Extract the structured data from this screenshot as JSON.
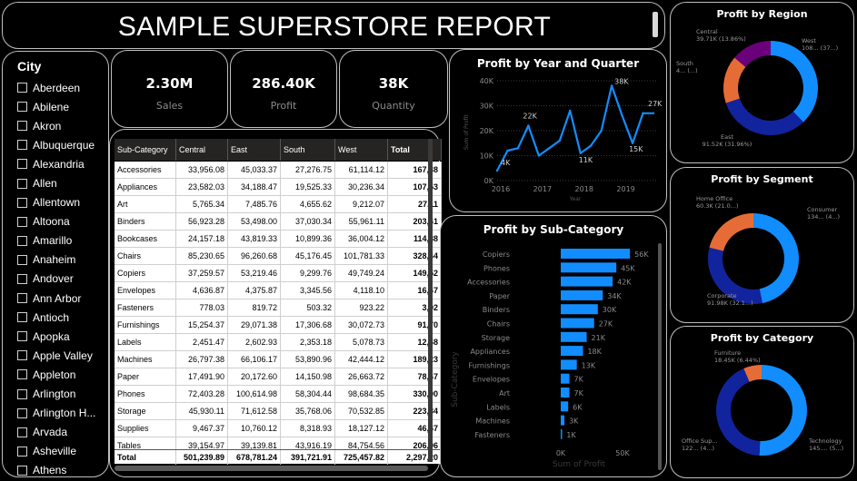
{
  "report": {
    "title": "SAMPLE SUPERSTORE REPORT"
  },
  "city_filter": {
    "title": "City",
    "items": [
      "Aberdeen",
      "Abilene",
      "Akron",
      "Albuquerque",
      "Alexandria",
      "Allen",
      "Allentown",
      "Altoona",
      "Amarillo",
      "Anaheim",
      "Andover",
      "Ann Arbor",
      "Antioch",
      "Apopka",
      "Apple Valley",
      "Appleton",
      "Arlington",
      "Arlington H...",
      "Arvada",
      "Asheville",
      "Athens"
    ]
  },
  "kpis": {
    "sales": {
      "value": "2.30M",
      "label": "Sales"
    },
    "profit": {
      "value": "286.40K",
      "label": "Profit"
    },
    "quantity": {
      "value": "38K",
      "label": "Quantity"
    }
  },
  "matrix": {
    "headers": [
      "Sub-Category",
      "Central",
      "East",
      "South",
      "West",
      "Total"
    ],
    "rows": [
      [
        "Accessories",
        "33,956.08",
        "45,033.37",
        "27,276.75",
        "61,114.12",
        "167,38"
      ],
      [
        "Appliances",
        "23,582.03",
        "34,188.47",
        "19,525.33",
        "30,236.34",
        "107,53"
      ],
      [
        "Art",
        "5,765.34",
        "7,485.76",
        "4,655.62",
        "9,212.07",
        "27,11"
      ],
      [
        "Binders",
        "56,923.28",
        "53,498.00",
        "37,030.34",
        "55,961.11",
        "203,41"
      ],
      [
        "Bookcases",
        "24,157.18",
        "43,819.33",
        "10,899.36",
        "36,004.12",
        "114,88"
      ],
      [
        "Chairs",
        "85,230.65",
        "96,260.68",
        "45,176.45",
        "101,781.33",
        "328,44"
      ],
      [
        "Copiers",
        "37,259.57",
        "53,219.46",
        "9,299.76",
        "49,749.24",
        "149,52"
      ],
      [
        "Envelopes",
        "4,636.87",
        "4,375.87",
        "3,345.56",
        "4,118.10",
        "16,47"
      ],
      [
        "Fasteners",
        "778.03",
        "819.72",
        "503.32",
        "923.22",
        "3,02"
      ],
      [
        "Furnishings",
        "15,254.37",
        "29,071.38",
        "17,306.68",
        "30,072.73",
        "91,70"
      ],
      [
        "Labels",
        "2,451.47",
        "2,602.93",
        "2,353.18",
        "5,078.73",
        "12,48"
      ],
      [
        "Machines",
        "26,797.38",
        "66,106.17",
        "53,890.96",
        "42,444.12",
        "189,23"
      ],
      [
        "Paper",
        "17,491.90",
        "20,172.60",
        "14,150.98",
        "26,663.72",
        "78,47"
      ],
      [
        "Phones",
        "72,403.28",
        "100,614.98",
        "58,304.44",
        "98,684.35",
        "330,00"
      ],
      [
        "Storage",
        "45,930.11",
        "71,612.58",
        "35,768.06",
        "70,532.85",
        "223,84"
      ],
      [
        "Supplies",
        "9,467.37",
        "10,760.12",
        "8,318.93",
        "18,127.12",
        "46,67"
      ],
      [
        "Tables",
        "39,154.97",
        "39,139.81",
        "43,916.19",
        "84,754.56",
        "206,96"
      ]
    ],
    "total": [
      "Total",
      "501,239.89",
      "678,781.24",
      "391,721.91",
      "725,457.82",
      "2,297,20"
    ]
  },
  "charts": {
    "year_quarter": {
      "title": "Profit by Year and Quarter",
      "ylabel": "Sum of Profit",
      "xlabel": "Year",
      "yticks": [
        "0K",
        "10K",
        "20K",
        "30K",
        "40K"
      ],
      "xticks": [
        "2016",
        "2017",
        "2018",
        "2019"
      ]
    },
    "subcategory": {
      "title": "Profit by Sub-Category",
      "ylabel": "Sub-Category",
      "xlabel": "Sum of Profit",
      "xticks": [
        "0K",
        "50K"
      ]
    },
    "region": {
      "title": "Profit by Region"
    },
    "segment": {
      "title": "Profit by Segment"
    },
    "category": {
      "title": "Profit by Category"
    }
  },
  "chart_data": [
    {
      "type": "line",
      "title": "Profit by Year and Quarter",
      "xlabel": "Year",
      "ylabel": "Sum of Profit",
      "x": [
        "2016 Q1",
        "2016 Q2",
        "2016 Q3",
        "2016 Q4",
        "2017 Q1",
        "2017 Q2",
        "2017 Q3",
        "2017 Q4",
        "2018 Q1",
        "2018 Q2",
        "2018 Q3",
        "2018 Q4",
        "2019 Q1",
        "2019 Q2",
        "2019 Q3",
        "2019 Q4"
      ],
      "xticks": [
        "2016",
        "2017",
        "2018",
        "2019"
      ],
      "ylim": [
        0,
        40000
      ],
      "series": [
        {
          "values": [
            4000,
            12000,
            13000,
            22000,
            10000,
            13000,
            16000,
            28000,
            11000,
            14000,
            20000,
            38000,
            26000,
            15000,
            27000,
            27000
          ]
        }
      ],
      "annotations": [
        "38K",
        "27K",
        "22K",
        "15K",
        "11K",
        "4K"
      ],
      "color": "#118dff"
    },
    {
      "type": "bar",
      "orientation": "horizontal",
      "title": "Profit by Sub-Category",
      "xlabel": "Sum of Profit",
      "ylabel": "Sub-Category",
      "categories": [
        "Copiers",
        "Phones",
        "Accessories",
        "Paper",
        "Binders",
        "Chairs",
        "Storage",
        "Appliances",
        "Furnishings",
        "Envelopes",
        "Art",
        "Labels",
        "Machines",
        "Fasteners"
      ],
      "values": [
        56000,
        45000,
        42000,
        34000,
        30000,
        27000,
        21000,
        18000,
        13000,
        7000,
        7000,
        6000,
        3000,
        1000
      ],
      "labels": [
        "56K",
        "45K",
        "42K",
        "34K",
        "30K",
        "27K",
        "21K",
        "18K",
        "13K",
        "7K",
        "7K",
        "6K",
        "3K",
        "1K"
      ],
      "xticks": [
        "0K",
        "50K"
      ],
      "color": "#118dff"
    },
    {
      "type": "pie",
      "donut": true,
      "title": "Profit by Region",
      "slices": [
        {
          "label": "West",
          "value": 108418,
          "text": "West\n108... (37...)",
          "color": "#118dff"
        },
        {
          "label": "East",
          "value": 91520,
          "text": "East\n91.52K (31.96%)",
          "color": "#12239e"
        },
        {
          "label": "South",
          "value": 46750,
          "text": "South\n4... (...)",
          "color": "#e66c37"
        },
        {
          "label": "Central",
          "value": 39710,
          "text": "Central\n39.71K (13.86%)",
          "color": "#6b007b"
        }
      ]
    },
    {
      "type": "pie",
      "donut": true,
      "title": "Profit by Segment",
      "slices": [
        {
          "label": "Consumer",
          "value": 134120,
          "text": "Consumer\n134... (4...)",
          "color": "#118dff"
        },
        {
          "label": "Corporate",
          "value": 91980,
          "text": "Corporate\n91.98K (32.1...)",
          "color": "#12239e"
        },
        {
          "label": "Home Office",
          "value": 60300,
          "text": "Home Office\n60.3K (21.0...)",
          "color": "#e66c37"
        }
      ]
    },
    {
      "type": "pie",
      "donut": true,
      "title": "Profit by Category",
      "slices": [
        {
          "label": "Technology",
          "value": 145450,
          "text": "Technology\n145.... (5...)",
          "color": "#118dff"
        },
        {
          "label": "Office Supplies",
          "value": 122490,
          "text": "Office Sup...\n122... (4...)",
          "color": "#12239e"
        },
        {
          "label": "Furniture",
          "value": 18450,
          "text": "Furniture\n18.45K (6.44%)",
          "color": "#e66c37"
        }
      ]
    }
  ]
}
